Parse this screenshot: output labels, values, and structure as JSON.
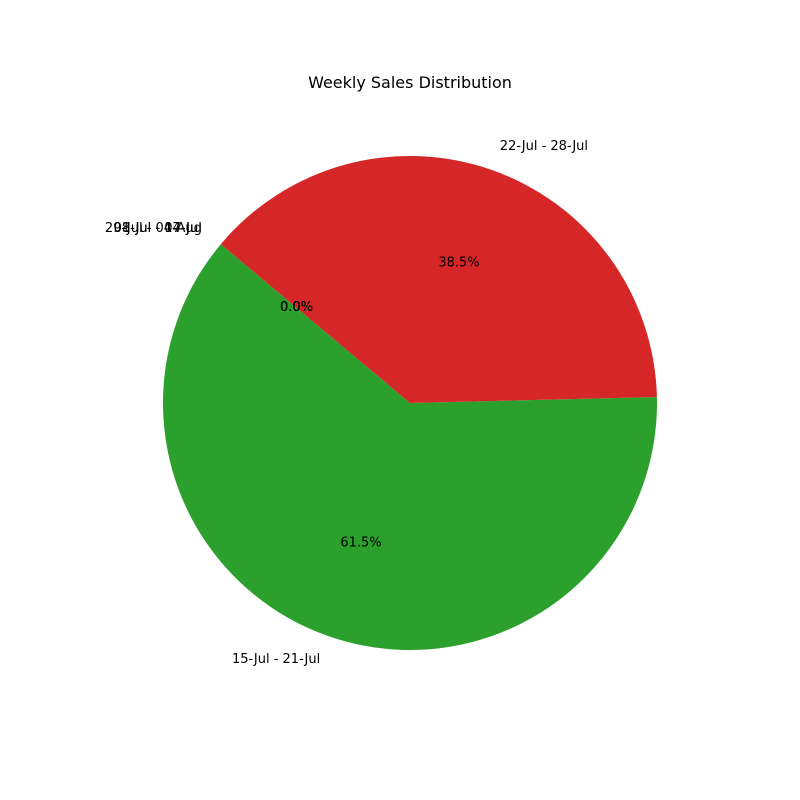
{
  "chart_data": {
    "type": "pie",
    "title": "Weekly Sales Distribution",
    "start_angle_deg": 140,
    "direction": "counterclockwise",
    "slices": [
      {
        "label": "01-Jul - 07-Jul",
        "value": 0.0,
        "pct_label": "0.0%",
        "color": "#1f77b4"
      },
      {
        "label": "08-Jul - 14-Jul",
        "value": 0.0,
        "pct_label": "0.0%",
        "color": "#ff7f0e"
      },
      {
        "label": "15-Jul - 21-Jul",
        "value": 61.5,
        "pct_label": "61.5%",
        "color": "#2ca02c"
      },
      {
        "label": "22-Jul - 28-Jul",
        "value": 38.5,
        "pct_label": "38.5%",
        "color": "#d62728"
      },
      {
        "label": "29-Jul - 04-Aug",
        "value": 0.0,
        "pct_label": "0.0%",
        "color": "#9467bd"
      }
    ]
  }
}
